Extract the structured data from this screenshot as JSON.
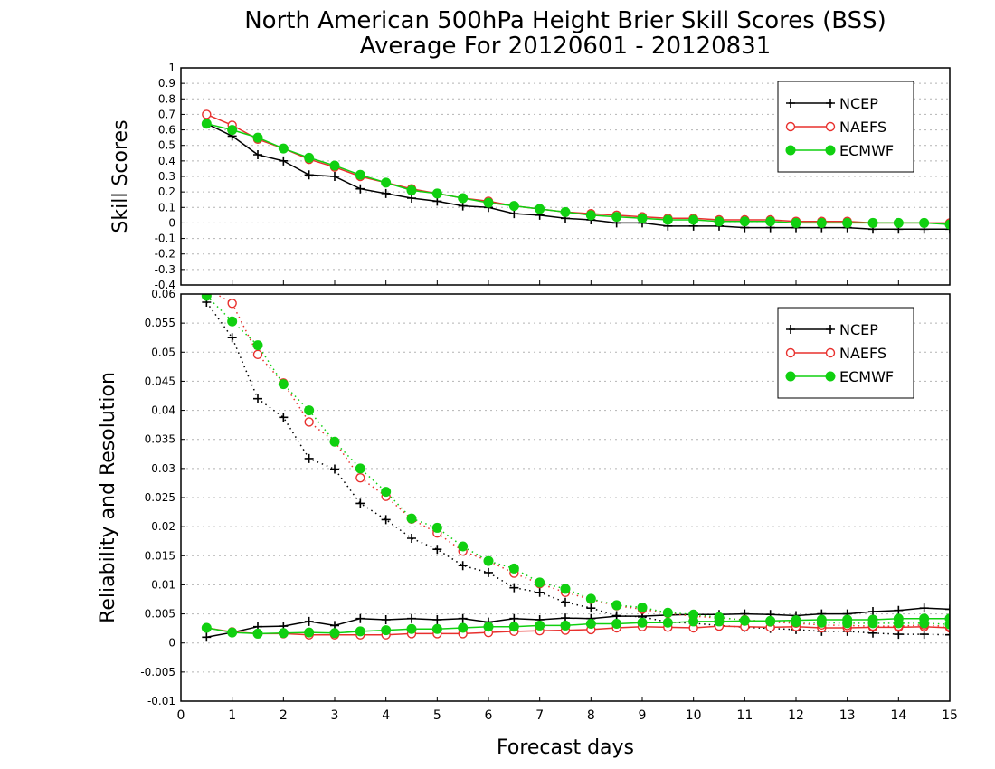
{
  "title": {
    "line1": "North American 500hPa Height Brier Skill Scores (BSS)",
    "line2": "Average For 20120601 - 20120831"
  },
  "colors": {
    "NCEP": "#000000",
    "NAEFS": "#e8302d",
    "ECMWF": "#10d010"
  },
  "chart_data": [
    {
      "type": "line",
      "ylabel": "Skill Scores",
      "xlabel": "",
      "xlim": [
        0,
        15
      ],
      "ylim": [
        -0.4,
        1
      ],
      "grid": true,
      "legend_position": "top-right",
      "x_ticks": [
        "0",
        "1",
        "2",
        "3",
        "4",
        "5",
        "6",
        "7",
        "8",
        "9",
        "10",
        "11",
        "12",
        "13",
        "14",
        "15"
      ],
      "y_ticks": [
        "-0.4",
        "-0.3",
        "-0.2",
        "-0.1",
        "0",
        "0.1",
        "0.2",
        "0.3",
        "0.4",
        "0.5",
        "0.6",
        "0.7",
        "0.8",
        "0.9",
        "1"
      ],
      "x": [
        0.5,
        1,
        1.5,
        2,
        2.5,
        3,
        3.5,
        4,
        4.5,
        5,
        5.5,
        6,
        6.5,
        7,
        7.5,
        8,
        8.5,
        9,
        9.5,
        10,
        10.5,
        11,
        11.5,
        12,
        12.5,
        13,
        13.5,
        14,
        14.5,
        15
      ],
      "series": [
        {
          "name": "NCEP",
          "marker": "plus",
          "line": "solid",
          "values": [
            0.64,
            0.56,
            0.44,
            0.4,
            0.31,
            0.3,
            0.22,
            0.19,
            0.16,
            0.14,
            0.11,
            0.1,
            0.06,
            0.05,
            0.03,
            0.02,
            0.0,
            0.0,
            -0.02,
            -0.02,
            -0.02,
            -0.03,
            -0.03,
            -0.03,
            -0.03,
            -0.03,
            -0.04,
            -0.04,
            -0.04,
            -0.04
          ]
        },
        {
          "name": "NAEFS",
          "marker": "open-circle",
          "line": "solid",
          "values": [
            0.7,
            0.63,
            0.54,
            0.48,
            0.41,
            0.36,
            0.3,
            0.26,
            0.22,
            0.19,
            0.16,
            0.14,
            0.11,
            0.09,
            0.07,
            0.06,
            0.05,
            0.04,
            0.03,
            0.03,
            0.02,
            0.02,
            0.02,
            0.01,
            0.01,
            0.01,
            0.0,
            0.0,
            0.0,
            0.0
          ]
        },
        {
          "name": "ECMWF",
          "marker": "filled-circle",
          "line": "solid",
          "values": [
            0.64,
            0.6,
            0.55,
            0.48,
            0.42,
            0.37,
            0.31,
            0.26,
            0.21,
            0.19,
            0.16,
            0.13,
            0.11,
            0.09,
            0.07,
            0.05,
            0.04,
            0.03,
            0.02,
            0.02,
            0.01,
            0.01,
            0.01,
            0.0,
            0.0,
            0.0,
            0.0,
            0.0,
            0.0,
            -0.01
          ]
        }
      ]
    },
    {
      "type": "line",
      "ylabel": "Reliability and Resolution",
      "xlabel": "Forecast days",
      "xlim": [
        0,
        15
      ],
      "ylim": [
        -0.01,
        0.06
      ],
      "grid": true,
      "legend_position": "top-right",
      "x_ticks": [
        "0",
        "1",
        "2",
        "3",
        "4",
        "5",
        "6",
        "7",
        "8",
        "9",
        "10",
        "11",
        "12",
        "13",
        "14",
        "15"
      ],
      "y_ticks": [
        "-0.01",
        "-0.005",
        "0",
        "0.005",
        "0.01",
        "0.015",
        "0.02",
        "0.025",
        "0.03",
        "0.035",
        "0.04",
        "0.045",
        "0.05",
        "0.055",
        "0.06"
      ],
      "x": [
        0.5,
        1,
        1.5,
        2,
        2.5,
        3,
        3.5,
        4,
        4.5,
        5,
        5.5,
        6,
        6.5,
        7,
        7.5,
        8,
        8.5,
        9,
        9.5,
        10,
        10.5,
        11,
        11.5,
        12,
        12.5,
        13,
        13.5,
        14,
        14.5,
        15
      ],
      "series": [
        {
          "name": "NCEP",
          "component": "Reliability",
          "marker": "plus",
          "line": "solid",
          "values": [
            0.001,
            0.0018,
            0.0028,
            0.0029,
            0.0037,
            0.003,
            0.0042,
            0.004,
            0.0042,
            0.004,
            0.0042,
            0.0036,
            0.0042,
            0.004,
            0.0043,
            0.0042,
            0.0046,
            0.0046,
            0.0048,
            0.0049,
            0.0049,
            0.005,
            0.0049,
            0.0047,
            0.005,
            0.005,
            0.0054,
            0.0056,
            0.006,
            0.0058
          ]
        },
        {
          "name": "NCEP",
          "component": "Resolution",
          "marker": "plus",
          "line": "dotted",
          "values": [
            0.0586,
            0.0525,
            0.042,
            0.0388,
            0.0317,
            0.0299,
            0.024,
            0.0212,
            0.018,
            0.0161,
            0.0133,
            0.0121,
            0.0095,
            0.0087,
            0.007,
            0.006,
            0.0047,
            0.0045,
            0.0036,
            0.0034,
            0.003,
            0.0027,
            0.0025,
            0.0023,
            0.002,
            0.002,
            0.0017,
            0.0015,
            0.0015,
            0.0014
          ]
        },
        {
          "name": "NAEFS",
          "component": "Reliability",
          "marker": "open-circle",
          "line": "solid",
          "values": [
            0.0026,
            0.0019,
            0.0016,
            0.0016,
            0.0014,
            0.0014,
            0.0014,
            0.0014,
            0.0016,
            0.0016,
            0.0016,
            0.0018,
            0.002,
            0.0021,
            0.0022,
            0.0023,
            0.0026,
            0.0028,
            0.0027,
            0.0026,
            0.0029,
            0.0028,
            0.0027,
            0.0028,
            0.0026,
            0.0026,
            0.0027,
            0.0027,
            0.0028,
            0.0026
          ]
        },
        {
          "name": "NAEFS",
          "component": "Resolution",
          "marker": "open-circle",
          "line": "dotted",
          "values": [
            0.061,
            0.0584,
            0.0496,
            0.0447,
            0.038,
            0.0346,
            0.0284,
            0.0252,
            0.0213,
            0.0189,
            0.0158,
            0.0141,
            0.012,
            0.0102,
            0.0087,
            0.0075,
            0.0064,
            0.0058,
            0.0051,
            0.0046,
            0.0043,
            0.004,
            0.0036,
            0.0034,
            0.0031,
            0.003,
            0.0029,
            0.0029,
            0.0031,
            0.0028
          ]
        },
        {
          "name": "ECMWF",
          "component": "Reliability",
          "marker": "filled-circle",
          "line": "solid",
          "values": [
            0.0026,
            0.0018,
            0.0016,
            0.0017,
            0.0018,
            0.0017,
            0.002,
            0.0022,
            0.0024,
            0.0024,
            0.0026,
            0.0028,
            0.0028,
            0.003,
            0.003,
            0.0033,
            0.0033,
            0.0035,
            0.0035,
            0.0037,
            0.0037,
            0.0038,
            0.0038,
            0.0039,
            0.004,
            0.004,
            0.004,
            0.0042,
            0.0042,
            0.0042
          ]
        },
        {
          "name": "ECMWF",
          "component": "Resolution",
          "marker": "filled-circle",
          "line": "dotted",
          "values": [
            0.0597,
            0.0553,
            0.0512,
            0.0445,
            0.04,
            0.0346,
            0.03,
            0.026,
            0.0214,
            0.0198,
            0.0166,
            0.0141,
            0.0128,
            0.0104,
            0.0093,
            0.0076,
            0.0065,
            0.0061,
            0.0052,
            0.0049,
            0.0044,
            0.0039,
            0.0037,
            0.0036,
            0.0035,
            0.0034,
            0.0034,
            0.0034,
            0.0034,
            0.0032
          ]
        }
      ]
    }
  ]
}
